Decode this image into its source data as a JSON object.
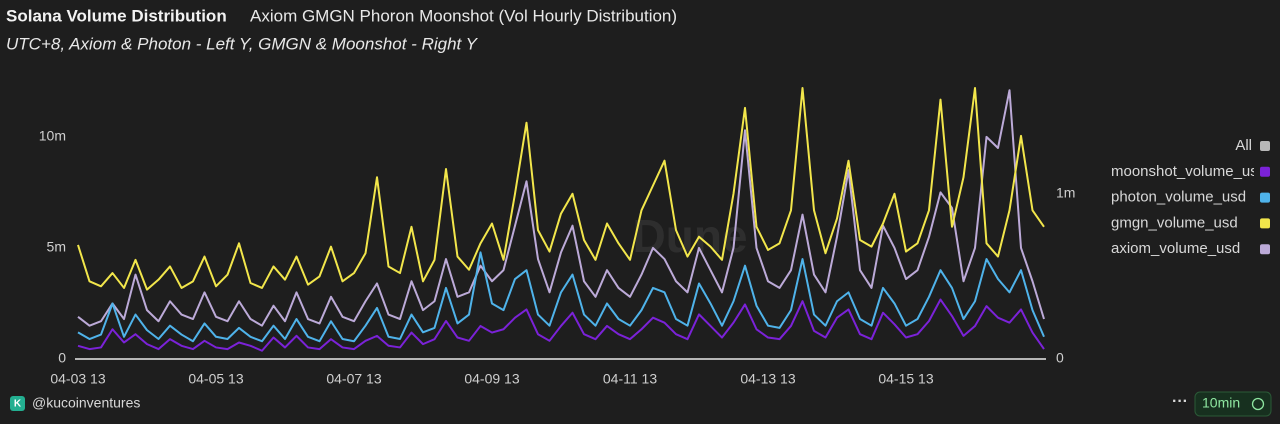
{
  "header": {
    "title": "Solana Volume Distribution"
  },
  "footer": {
    "author": "@kucoinventures",
    "refresh": "10min"
  },
  "chart_data": {
    "type": "line",
    "title": "Axiom GMGN Phoron Moonshot (Vol Hourly Distribution)",
    "subtitle": "UTC+8, Axiom & Photon - Left Y, GMGN & Moonshot - Right Y",
    "watermark": "Dune",
    "legend_all": "All",
    "legend_position": "right",
    "grid": false,
    "categories": [
      "04-03 13",
      null,
      null,
      null,
      null,
      null,
      null,
      null,
      null,
      null,
      null,
      null,
      "04-05 13",
      null,
      null,
      null,
      null,
      null,
      null,
      null,
      null,
      null,
      null,
      null,
      "04-07 13",
      null,
      null,
      null,
      null,
      null,
      null,
      null,
      null,
      null,
      null,
      null,
      "04-09 13",
      null,
      null,
      null,
      null,
      null,
      null,
      null,
      null,
      null,
      null,
      null,
      "04-11 13",
      null,
      null,
      null,
      null,
      null,
      null,
      null,
      null,
      null,
      null,
      null,
      "04-13 13",
      null,
      null,
      null,
      null,
      null,
      null,
      null,
      null,
      null,
      null,
      null,
      "04-15 13",
      null,
      null,
      null,
      null,
      null,
      null,
      null,
      null,
      null,
      null,
      null,
      null
    ],
    "ylim": [
      0,
      12200000
    ],
    "yticks": [
      0,
      {
        "value": 5000000,
        "label": "5m"
      },
      {
        "value": 10000000,
        "label": "10m"
      }
    ],
    "y2lim": [
      0,
      1640000
    ],
    "y2ticks": [
      0,
      {
        "value": 1000000,
        "label": "1m"
      }
    ],
    "series": [
      {
        "name": "moonshot_volume_usd",
        "color": "#7b22d8",
        "axis": "y2",
        "values": [
          80000,
          60000,
          70000,
          180000,
          100000,
          150000,
          90000,
          60000,
          120000,
          80000,
          60000,
          110000,
          70000,
          60000,
          100000,
          80000,
          50000,
          130000,
          70000,
          140000,
          70000,
          60000,
          120000,
          70000,
          60000,
          110000,
          140000,
          80000,
          70000,
          160000,
          90000,
          120000,
          230000,
          130000,
          110000,
          200000,
          160000,
          180000,
          250000,
          300000,
          150000,
          110000,
          200000,
          280000,
          150000,
          120000,
          200000,
          150000,
          120000,
          180000,
          250000,
          220000,
          150000,
          120000,
          270000,
          200000,
          130000,
          220000,
          330000,
          180000,
          130000,
          120000,
          200000,
          350000,
          170000,
          130000,
          250000,
          300000,
          150000,
          120000,
          280000,
          210000,
          130000,
          150000,
          230000,
          360000,
          260000,
          140000,
          200000,
          320000,
          250000,
          220000,
          300000,
          160000,
          60000
        ]
      },
      {
        "name": "photon_volume_usd",
        "color": "#4fb3ea",
        "values": [
          1200000,
          900000,
          1100000,
          2500000,
          1000000,
          2000000,
          1300000,
          900000,
          1500000,
          1100000,
          800000,
          1600000,
          1000000,
          900000,
          1400000,
          1000000,
          800000,
          1500000,
          900000,
          1800000,
          1000000,
          800000,
          1700000,
          900000,
          800000,
          1500000,
          2300000,
          1000000,
          900000,
          2000000,
          1200000,
          1400000,
          3200000,
          1600000,
          2000000,
          4800000,
          2500000,
          2200000,
          3600000,
          4000000,
          2000000,
          1500000,
          3000000,
          3800000,
          2000000,
          1500000,
          2500000,
          1800000,
          1500000,
          2200000,
          3200000,
          3000000,
          1800000,
          1500000,
          3400000,
          2500000,
          1500000,
          2600000,
          4200000,
          2400000,
          1500000,
          1400000,
          2200000,
          4500000,
          2000000,
          1500000,
          2600000,
          3000000,
          1800000,
          1500000,
          3200000,
          2500000,
          1500000,
          1800000,
          2800000,
          4000000,
          3200000,
          1800000,
          2600000,
          4500000,
          3600000,
          3000000,
          4000000,
          2200000,
          1000000
        ]
      },
      {
        "name": "gmgn_volume_usd",
        "color": "#f2e64b",
        "axis": "y2",
        "values": [
          690000,
          470000,
          440000,
          520000,
          430000,
          600000,
          420000,
          480000,
          560000,
          430000,
          470000,
          620000,
          440000,
          510000,
          700000,
          460000,
          430000,
          560000,
          480000,
          620000,
          450000,
          500000,
          680000,
          470000,
          520000,
          640000,
          1100000,
          560000,
          520000,
          800000,
          470000,
          600000,
          1150000,
          620000,
          540000,
          700000,
          820000,
          600000,
          1000000,
          1430000,
          780000,
          650000,
          880000,
          1000000,
          720000,
          600000,
          820000,
          700000,
          600000,
          900000,
          1050000,
          1200000,
          780000,
          620000,
          740000,
          680000,
          600000,
          1000000,
          1520000,
          800000,
          660000,
          700000,
          900000,
          1640000,
          900000,
          640000,
          850000,
          1200000,
          720000,
          680000,
          820000,
          1000000,
          650000,
          700000,
          900000,
          1570000,
          800000,
          1100000,
          1640000,
          700000,
          620000,
          900000,
          1350000,
          900000,
          800000
        ]
      },
      {
        "name": "axiom_volume_usd",
        "color": "#bcaad8",
        "values": [
          1900000,
          1500000,
          1700000,
          2500000,
          1800000,
          3800000,
          2200000,
          1700000,
          2600000,
          2000000,
          1800000,
          3000000,
          1900000,
          1700000,
          2600000,
          1800000,
          1500000,
          2400000,
          1700000,
          3000000,
          1800000,
          1600000,
          2800000,
          1900000,
          1700000,
          2600000,
          3400000,
          2000000,
          1800000,
          3500000,
          2200000,
          2600000,
          4500000,
          2800000,
          3000000,
          4200000,
          3500000,
          4000000,
          6000000,
          8000000,
          4500000,
          3000000,
          4800000,
          6000000,
          3500000,
          2800000,
          4000000,
          3200000,
          2800000,
          3800000,
          5000000,
          4500000,
          3500000,
          3000000,
          5000000,
          4000000,
          3000000,
          5000000,
          10300000,
          5000000,
          3500000,
          3200000,
          4000000,
          6500000,
          3800000,
          3000000,
          5500000,
          8500000,
          4000000,
          3200000,
          6000000,
          5000000,
          3600000,
          4000000,
          5500000,
          7500000,
          6800000,
          3500000,
          5000000,
          10000000,
          9500000,
          12100000,
          5000000,
          3500000,
          1800000
        ]
      }
    ]
  }
}
